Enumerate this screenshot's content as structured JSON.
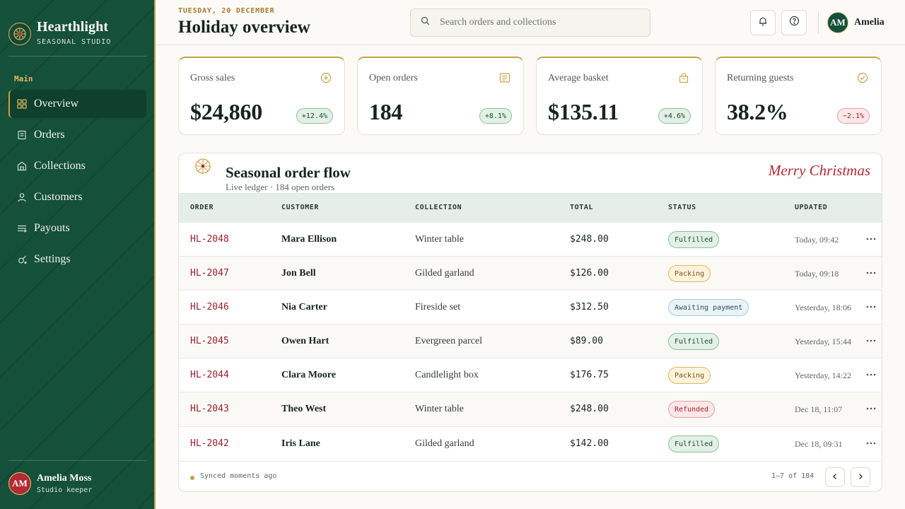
{
  "brand": {
    "name": "Hearthlight",
    "subtitle": "SEASONAL STUDIO"
  },
  "sidebar": {
    "section_label": "Main",
    "items": [
      {
        "label": "Overview",
        "icon": "grid-icon",
        "active": true
      },
      {
        "label": "Orders",
        "icon": "receipt-icon"
      },
      {
        "label": "Collections",
        "icon": "store-icon"
      },
      {
        "label": "Customers",
        "icon": "user-icon"
      },
      {
        "label": "Payouts",
        "icon": "payouts-icon"
      },
      {
        "label": "Settings",
        "icon": "settings-icon"
      }
    ],
    "user": {
      "initials": "AM",
      "name": "Amelia Moss",
      "role": "Studio keeper"
    }
  },
  "header": {
    "date": "TUESDAY, 20 DECEMBER",
    "title": "Holiday overview",
    "search_placeholder": "Search orders and collections",
    "user": {
      "initials": "AM",
      "name": "Amelia"
    }
  },
  "kpis": [
    {
      "label": "Gross sales",
      "value": "$24,860",
      "delta": "+12.4%",
      "trend": "up",
      "icon": "plus-circle-icon"
    },
    {
      "label": "Open orders",
      "value": "184",
      "delta": "+8.1%",
      "trend": "up",
      "icon": "document-icon"
    },
    {
      "label": "Average basket",
      "value": "$135.11",
      "delta": "+4.6%",
      "trend": "up",
      "icon": "bag-icon"
    },
    {
      "label": "Returning guests",
      "value": "38.2%",
      "delta": "−2.1%",
      "trend": "down",
      "icon": "check-circle-icon"
    }
  ],
  "orders_table": {
    "title": "Seasonal order flow",
    "subtitle": "Live ledger · 184 open orders",
    "script_greeting": "Merry Christmas",
    "columns": [
      "ORDER",
      "CUSTOMER",
      "COLLECTION",
      "TOTAL",
      "STATUS",
      "UPDATED"
    ],
    "rows": [
      {
        "order": "HL-2048",
        "customer": "Mara Ellison",
        "collection": "Winter table",
        "total": "$248.00",
        "status": "Fulfilled",
        "updated": "Today, 09:42"
      },
      {
        "order": "HL-2047",
        "customer": "Jon Bell",
        "collection": "Gilded garland",
        "total": "$126.00",
        "status": "Packing",
        "updated": "Today, 09:18"
      },
      {
        "order": "HL-2046",
        "customer": "Nia Carter",
        "collection": "Fireside set",
        "total": "$312.50",
        "status": "Awaiting payment",
        "updated": "Yesterday, 18:06"
      },
      {
        "order": "HL-2045",
        "customer": "Owen Hart",
        "collection": "Evergreen parcel",
        "total": "$89.00",
        "status": "Fulfilled",
        "updated": "Yesterday, 15:44"
      },
      {
        "order": "HL-2044",
        "customer": "Clara Moore",
        "collection": "Candlelight box",
        "total": "$176.75",
        "status": "Packing",
        "updated": "Yesterday, 14:22"
      },
      {
        "order": "HL-2043",
        "customer": "Theo West",
        "collection": "Winter table",
        "total": "$248.00",
        "status": "Refunded",
        "updated": "Dec 18, 11:07"
      },
      {
        "order": "HL-2042",
        "customer": "Iris Lane",
        "collection": "Gilded garland",
        "total": "$142.00",
        "status": "Fulfilled",
        "updated": "Dec 18, 09:31"
      }
    ],
    "footer": {
      "sync_text": "Synced moments ago",
      "pagination": "1–7 of 184"
    }
  },
  "colors": {
    "sidebar_green": "#15503a",
    "gold_accent": "#c9a04a",
    "brand_red": "#b22a33",
    "order_id_red": "#9b1e2a"
  }
}
